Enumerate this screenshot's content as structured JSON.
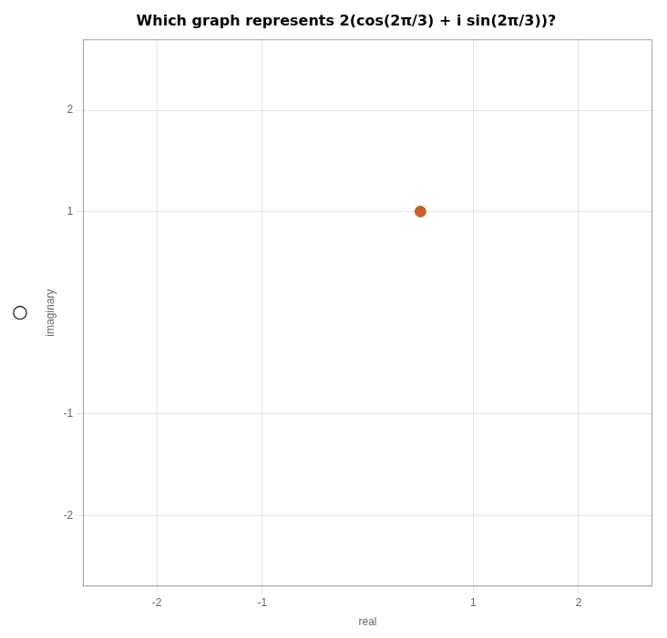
{
  "chart_data": {
    "type": "scatter",
    "title": "Which graph represents 2(cos(2π/3) + i sin(2π/3))?",
    "x": [
      0.5
    ],
    "values": [
      1.0
    ],
    "color": "#C8622A",
    "xlim": [
      -2.7,
      2.7
    ],
    "ylim": [
      -2.7,
      2.7
    ],
    "xticks": [
      -2,
      -1,
      1,
      2
    ],
    "yticks": [
      -2,
      -1,
      1,
      2
    ],
    "xlabel": "real",
    "ylabel": "imaginary",
    "grid": true,
    "annotations": [
      "○"
    ]
  }
}
